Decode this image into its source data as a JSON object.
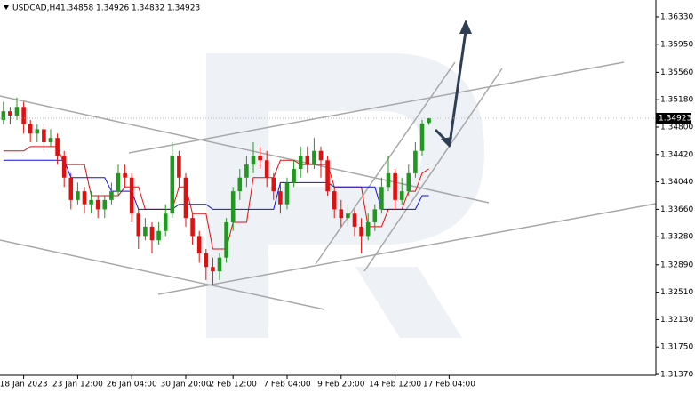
{
  "chart_data": {
    "type": "candlestick",
    "symbol": "USDCAD,H4",
    "up_color": "#1f9a1f",
    "down_color": "#e01010",
    "grid": false,
    "ylim": [
      1.31358,
      1.36564
    ],
    "yticks": [
      {
        "value": 1.3633,
        "label": "1.36330"
      },
      {
        "value": 1.3595,
        "label": "1.35950"
      },
      {
        "value": 1.3556,
        "label": "1.35560"
      },
      {
        "value": 1.3518,
        "label": "1.35180"
      },
      {
        "value": 1.348,
        "label": "1.34800"
      },
      {
        "value": 1.3442,
        "label": "1.34420"
      },
      {
        "value": 1.3404,
        "label": "1.34040"
      },
      {
        "value": 1.3366,
        "label": "1.33660"
      },
      {
        "value": 1.3328,
        "label": "1.33280"
      },
      {
        "value": 1.3289,
        "label": "1.32890"
      },
      {
        "value": 1.3251,
        "label": "1.32510"
      },
      {
        "value": 1.3213,
        "label": "1.32130"
      },
      {
        "value": 1.3175,
        "label": "1.31750"
      },
      {
        "value": 1.3137,
        "label": "1.31370"
      }
    ],
    "categories": [
      null,
      null,
      null,
      "18 Jan 2023",
      null,
      null,
      null,
      null,
      null,
      null,
      null,
      "23 Jan 12:00",
      null,
      null,
      null,
      null,
      null,
      null,
      null,
      "26 Jan 04:00",
      null,
      null,
      null,
      null,
      null,
      null,
      null,
      "30 Jan 20:00",
      null,
      null,
      null,
      null,
      null,
      null,
      "2 Feb 12:00",
      null,
      null,
      null,
      null,
      null,
      null,
      null,
      "7 Feb 04:00",
      null,
      null,
      null,
      null,
      null,
      null,
      null,
      "9 Feb 20:00",
      null,
      null,
      null,
      null,
      null,
      null,
      null,
      "14 Feb 12:00",
      null,
      null,
      null,
      null,
      null,
      null,
      null,
      "17 Feb 04:00",
      null
    ],
    "open": [
      1.349,
      1.3502,
      1.3496,
      1.3508,
      1.3484,
      1.3471,
      1.3477,
      1.3459,
      1.3465,
      1.344,
      1.341,
      1.3379,
      1.3391,
      1.3373,
      1.3379,
      1.3366,
      1.3379,
      1.3391,
      1.3416,
      1.341,
      1.336,
      1.3329,
      1.3342,
      1.3323,
      1.3336,
      1.336,
      1.344,
      1.341,
      1.3354,
      1.3329,
      1.3305,
      1.3286,
      1.328,
      1.3299,
      1.3348,
      1.3391,
      1.341,
      1.3428,
      1.344,
      1.3434,
      1.341,
      1.3391,
      1.3373,
      1.3403,
      1.3422,
      1.344,
      1.3428,
      1.3447,
      1.3434,
      1.3391,
      1.3366,
      1.3354,
      1.336,
      1.3342,
      1.3329,
      1.3348,
      1.3366,
      1.3397,
      1.3416,
      1.3379,
      1.3391,
      1.3416,
      1.3447,
      1.34858,
      null,
      null,
      null,
      null
    ],
    "high": [
      1.3515,
      1.3508,
      1.3521,
      1.3515,
      1.349,
      1.3484,
      1.3484,
      1.3477,
      1.3471,
      1.3447,
      1.3416,
      1.3403,
      1.3397,
      1.3391,
      1.3385,
      1.3385,
      1.3403,
      1.3428,
      1.3428,
      1.3416,
      1.3366,
      1.3354,
      1.3348,
      1.3348,
      1.3373,
      1.3459,
      1.3447,
      1.3416,
      1.336,
      1.3336,
      1.3311,
      1.3299,
      1.3305,
      1.3354,
      1.3397,
      1.3422,
      1.344,
      1.3459,
      1.3453,
      1.3447,
      1.3416,
      1.3403,
      1.341,
      1.3434,
      1.3453,
      1.3453,
      1.3465,
      1.3453,
      1.344,
      1.3397,
      1.3379,
      1.3373,
      1.3366,
      1.3354,
      1.336,
      1.3373,
      1.341,
      1.344,
      1.3422,
      1.341,
      1.3428,
      1.3459,
      1.349,
      1.34926,
      null,
      null,
      null,
      null
    ],
    "low": [
      1.3484,
      1.3484,
      1.349,
      1.3471,
      1.3459,
      1.3459,
      1.3447,
      1.3453,
      1.3428,
      1.3397,
      1.3366,
      1.3373,
      1.336,
      1.336,
      1.3354,
      1.3354,
      1.3373,
      1.3385,
      1.3397,
      1.3348,
      1.3311,
      1.3323,
      1.3305,
      1.3317,
      1.3329,
      1.3354,
      1.3397,
      1.3342,
      1.3317,
      1.3292,
      1.3268,
      1.3262,
      1.3268,
      1.3292,
      1.3336,
      1.3379,
      1.3397,
      1.3416,
      1.3422,
      1.3397,
      1.3379,
      1.336,
      1.3366,
      1.3397,
      1.341,
      1.3416,
      1.3422,
      1.341,
      1.3385,
      1.3354,
      1.3342,
      1.3342,
      1.3329,
      1.3305,
      1.3323,
      1.3336,
      1.336,
      1.3391,
      1.3366,
      1.3373,
      1.3385,
      1.341,
      1.344,
      1.34832,
      null,
      null,
      null,
      null
    ],
    "close": [
      1.3502,
      1.3496,
      1.3508,
      1.3484,
      1.3471,
      1.3477,
      1.3459,
      1.3465,
      1.344,
      1.341,
      1.3379,
      1.3391,
      1.3373,
      1.3379,
      1.3366,
      1.3379,
      1.3391,
      1.3416,
      1.341,
      1.336,
      1.3329,
      1.3342,
      1.3323,
      1.3336,
      1.336,
      1.344,
      1.341,
      1.3354,
      1.3329,
      1.3305,
      1.3286,
      1.328,
      1.3299,
      1.3348,
      1.3391,
      1.341,
      1.3428,
      1.344,
      1.3434,
      1.341,
      1.3391,
      1.3373,
      1.3403,
      1.3422,
      1.344,
      1.3428,
      1.3447,
      1.3434,
      1.3391,
      1.3366,
      1.3354,
      1.336,
      1.3342,
      1.3329,
      1.3348,
      1.3366,
      1.3397,
      1.3416,
      1.3379,
      1.3391,
      1.3416,
      1.3447,
      1.3485,
      1.34923,
      null,
      null,
      null,
      null
    ],
    "lines": [
      {
        "color": "#e01010",
        "values": [
          1.3447,
          1.3447,
          1.3447,
          1.3447,
          1.3453,
          1.3453,
          1.3453,
          1.3453,
          1.3453,
          1.3428,
          1.3428,
          1.3428,
          1.3428,
          1.3385,
          1.3385,
          1.3385,
          1.3385,
          1.3385,
          1.3397,
          1.3397,
          1.3397,
          1.3366,
          1.3366,
          1.3366,
          1.3366,
          1.3366,
          1.3397,
          1.3397,
          1.336,
          1.336,
          1.336,
          1.3311,
          1.3311,
          1.3311,
          1.3348,
          1.3348,
          1.3348,
          1.341,
          1.341,
          1.341,
          1.341,
          1.3434,
          1.3434,
          1.3434,
          1.3428,
          1.3428,
          1.3428,
          1.3428,
          1.3428,
          1.3397,
          1.3397,
          1.3397,
          1.3397,
          1.3397,
          1.3342,
          1.3342,
          1.3342,
          1.3366,
          1.3366,
          1.3366,
          1.3391,
          1.3391,
          1.3416,
          1.3422,
          null,
          null,
          null,
          null
        ]
      },
      {
        "color": "#1010e0",
        "values": [
          1.3434,
          1.3434,
          1.3434,
          1.3434,
          1.3434,
          1.3434,
          1.3434,
          1.3434,
          1.3434,
          1.3434,
          1.341,
          1.341,
          1.341,
          1.341,
          1.341,
          1.341,
          1.3391,
          1.3391,
          1.3391,
          1.3391,
          1.3366,
          1.3366,
          1.3366,
          1.3366,
          1.3366,
          1.3366,
          1.3373,
          1.3373,
          1.3373,
          1.3373,
          1.3373,
          1.3366,
          1.3366,
          1.3366,
          1.3366,
          1.3366,
          1.3366,
          1.3366,
          1.3366,
          1.3366,
          1.3366,
          1.3403,
          1.3403,
          1.3403,
          1.3403,
          1.3403,
          1.3403,
          1.3403,
          1.3403,
          1.3397,
          1.3397,
          1.3397,
          1.3397,
          1.3397,
          1.3397,
          1.3397,
          1.3366,
          1.3366,
          1.3366,
          1.3366,
          1.3366,
          1.3366,
          1.3385,
          1.3385,
          null,
          null,
          null,
          null
        ]
      }
    ]
  }
}
